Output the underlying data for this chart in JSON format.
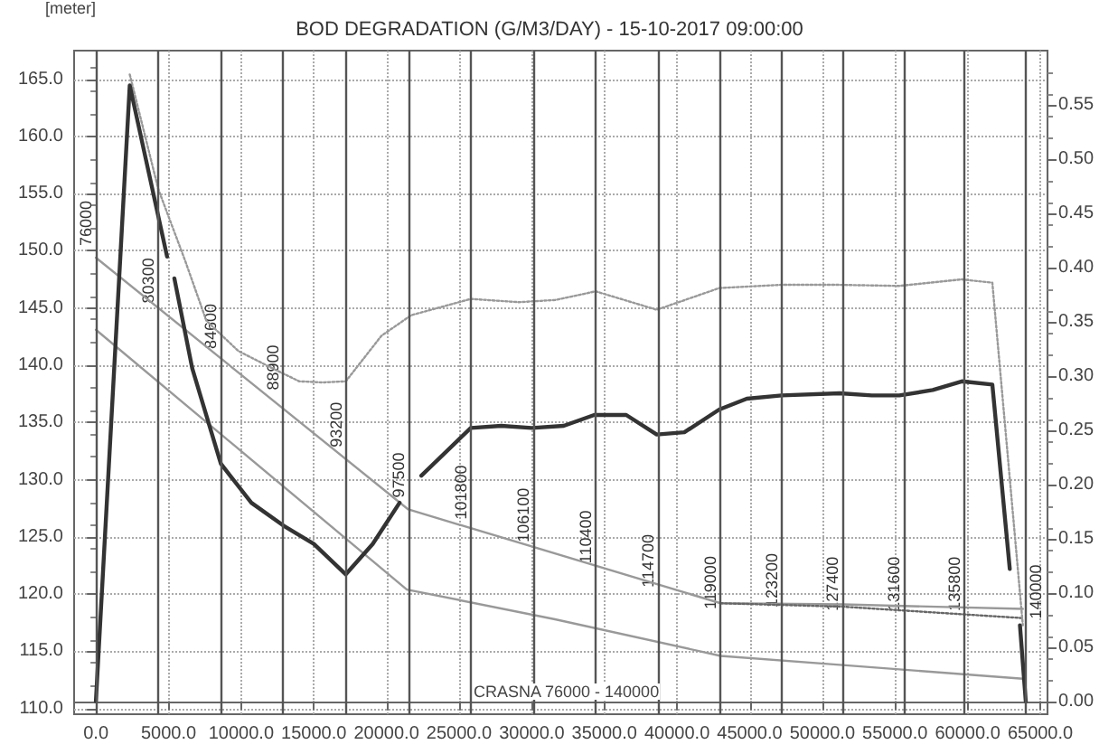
{
  "chart_data": {
    "type": "line",
    "title": "BOD DEGRADATION (G/M3/DAY) - 15-10-2017 09:00:00",
    "ylabel": "[meter]",
    "xlim": [
      -1500,
      65500
    ],
    "ylim": [
      109.5,
      167.5
    ],
    "y2lim": [
      -0.012,
      0.6
    ],
    "xticks": [
      {
        "value": 0,
        "label": "0.0"
      },
      {
        "value": 5000,
        "label": "5000.0"
      },
      {
        "value": 10000,
        "label": "10000.0"
      },
      {
        "value": 15000,
        "label": "15000.0"
      },
      {
        "value": 20000,
        "label": "20000.0"
      },
      {
        "value": 25000,
        "label": "25000.0"
      },
      {
        "value": 30000,
        "label": "30000.0"
      },
      {
        "value": 35000,
        "label": "35000.0"
      },
      {
        "value": 40000,
        "label": "40000.0"
      },
      {
        "value": 45000,
        "label": "45000.0"
      },
      {
        "value": 50000,
        "label": "50000.0"
      },
      {
        "value": 55000,
        "label": "55000.0"
      },
      {
        "value": 60000,
        "label": "60000.0"
      },
      {
        "value": 65000,
        "label": "65000.0"
      }
    ],
    "yticks": [
      {
        "value": 110,
        "label": "110.0"
      },
      {
        "value": 115,
        "label": "115.0"
      },
      {
        "value": 120,
        "label": "120.0"
      },
      {
        "value": 125,
        "label": "125.0"
      },
      {
        "value": 130,
        "label": "130.0"
      },
      {
        "value": 135,
        "label": "135.0"
      },
      {
        "value": 140,
        "label": "140.0"
      },
      {
        "value": 145,
        "label": "145.0"
      },
      {
        "value": 150,
        "label": "150.0"
      },
      {
        "value": 155,
        "label": "155.0"
      },
      {
        "value": 160,
        "label": "160.0"
      },
      {
        "value": 165,
        "label": "165.0"
      }
    ],
    "y2ticks": [
      {
        "value": 0,
        "label": "0.00"
      },
      {
        "value": 0.05,
        "label": "0.05"
      },
      {
        "value": 0.1,
        "label": "0.10"
      },
      {
        "value": 0.15,
        "label": "0.15"
      },
      {
        "value": 0.2,
        "label": "0.20"
      },
      {
        "value": 0.25,
        "label": "0.25"
      },
      {
        "value": 0.3,
        "label": "0.30"
      },
      {
        "value": 0.35,
        "label": "0.35"
      },
      {
        "value": 0.4,
        "label": "0.40"
      },
      {
        "value": 0.45,
        "label": "0.45"
      },
      {
        "value": 0.5,
        "label": "0.50"
      },
      {
        "value": 0.55,
        "label": "0.55"
      }
    ],
    "grid": true,
    "marker": "none",
    "series": [
      {
        "color": "#999999",
        "line_style": "solid",
        "x": [
          0,
          21500,
          43000,
          51400,
          63800
        ],
        "values": [
          149.4,
          127.4,
          119.2,
          119.1,
          118.7
        ]
      },
      {
        "color": "#999999",
        "line_style": "solid",
        "x": [
          0,
          21400,
          31600,
          43000,
          51400,
          63800
        ],
        "values": [
          143.1,
          120.4,
          117.8,
          114.6,
          113.8,
          112.6
        ]
      },
      {
        "color": "#666666",
        "line_style": "dotted",
        "x": [
          43000,
          51400,
          63800
        ],
        "values": [
          119.2,
          118.9,
          117.9
        ]
      },
      {
        "color": "#999999",
        "line_style": "dotted",
        "axis": "y2",
        "x": [
          2330,
          4300,
          6150,
          7600,
          9800,
          12150,
          14000,
          15600,
          17200,
          19650,
          21700,
          25800,
          29100,
          31600,
          34400,
          38600,
          42900,
          47200,
          51200,
          55300,
          59600,
          61700,
          63800
        ],
        "values": [
          0.578,
          0.472,
          0.406,
          0.351,
          0.323,
          0.307,
          0.295,
          0.294,
          0.295,
          0.337,
          0.356,
          0.371,
          0.368,
          0.37,
          0.378,
          0.361,
          0.381,
          0.384,
          0.384,
          0.383,
          0.389,
          0.386,
          0.07
        ]
      },
      {
        "color": "#333333",
        "line_style": "solid",
        "axis": "y2",
        "x": [
          0,
          2330,
          4900,
          5150,
          5400,
          6630,
          8600,
          10700,
          12900,
          15000,
          17200,
          19050,
          20900,
          21650,
          22400,
          25800,
          27900,
          30000,
          32200,
          34300,
          36500,
          38600,
          40500,
          42900,
          44800,
          47200,
          51200,
          53400,
          55300,
          57600,
          59600,
          61700,
          62900,
          63200,
          63600,
          64000
        ],
        "values": [
          0.0,
          0.568,
          0.41,
          null,
          0.39,
          0.307,
          0.219,
          0.183,
          0.162,
          0.145,
          0.117,
          0.145,
          0.183,
          null,
          0.208,
          0.252,
          0.254,
          0.252,
          0.254,
          0.264,
          0.264,
          0.246,
          0.248,
          0.269,
          0.279,
          0.282,
          0.284,
          0.282,
          0.282,
          0.287,
          0.295,
          0.292,
          0.122,
          null,
          0.07,
          0.0
        ]
      }
    ],
    "ref_lines": [
      {
        "axis": "x",
        "value": 0,
        "color": "#555555"
      },
      {
        "axis": "x",
        "value": 4300,
        "color": "#555555"
      },
      {
        "axis": "x",
        "value": 8600,
        "color": "#555555"
      },
      {
        "axis": "x",
        "value": 12900,
        "color": "#555555"
      },
      {
        "axis": "x",
        "value": 17200,
        "color": "#555555"
      },
      {
        "axis": "x",
        "value": 21500,
        "color": "#555555"
      },
      {
        "axis": "x",
        "value": 25800,
        "color": "#555555"
      },
      {
        "axis": "x",
        "value": 30100,
        "color": "#555555"
      },
      {
        "axis": "x",
        "value": 34400,
        "color": "#555555"
      },
      {
        "axis": "x",
        "value": 38700,
        "color": "#555555"
      },
      {
        "axis": "x",
        "value": 43000,
        "color": "#555555"
      },
      {
        "axis": "x",
        "value": 47200,
        "color": "#555555"
      },
      {
        "axis": "x",
        "value": 51400,
        "color": "#555555"
      },
      {
        "axis": "x",
        "value": 55600,
        "color": "#555555"
      },
      {
        "axis": "x",
        "value": 59800,
        "color": "#555555"
      },
      {
        "axis": "x",
        "value": 64000,
        "color": "#555555"
      }
    ],
    "annotations": [
      "CRASNA 76000 - 140000",
      {
        "text": "76000",
        "x": 0,
        "y": 152.4
      },
      {
        "text": "80300",
        "x": 4300,
        "y": 147.4
      },
      {
        "text": "84600",
        "x": 8600,
        "y": 143.4
      },
      {
        "text": "88900",
        "x": 12900,
        "y": 139.8
      },
      {
        "text": "93200",
        "x": 17200,
        "y": 134.8
      },
      {
        "text": "97500",
        "x": 21500,
        "y": 130.4
      },
      {
        "text": "101800",
        "x": 25800,
        "y": 128.9
      },
      {
        "text": "106100",
        "x": 30100,
        "y": 126.9
      },
      {
        "text": "110400",
        "x": 34400,
        "y": 125.0
      },
      {
        "text": "114700",
        "x": 38700,
        "y": 122.9
      },
      {
        "text": "119000",
        "x": 43000,
        "y": 121.0
      },
      {
        "text": "123200",
        "x": 47200,
        "y": 121.2
      },
      {
        "text": "127400",
        "x": 51400,
        "y": 120.9
      },
      {
        "text": "131600",
        "x": 55600,
        "y": 120.9
      },
      {
        "text": "135800",
        "x": 59800,
        "y": 120.9
      },
      {
        "text": "140000",
        "x": 64000,
        "y": 120.2
      }
    ]
  }
}
